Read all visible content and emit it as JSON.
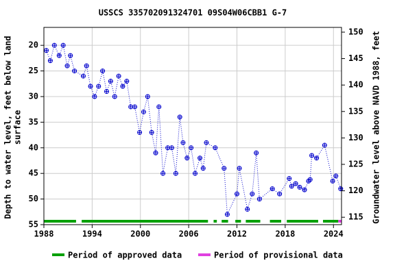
{
  "chart_data": {
    "type": "line",
    "title": "USSCS 335702091324701 09S04W06CBB1 G-7",
    "y_label": [
      "Depth to water level, feet below land",
      "surface"
    ],
    "y2_label": "Groundwater level above NAVD 1988, feet",
    "color": "#0000cc",
    "x": [
      1988.3,
      1988.8,
      1989.3,
      1989.9,
      1990.4,
      1990.9,
      1991.3,
      1991.8,
      1992.9,
      1993.3,
      1993.8,
      1994.3,
      1994.8,
      1995.3,
      1995.8,
      1996.3,
      1996.8,
      1997.3,
      1997.8,
      1998.3,
      1998.8,
      1999.3,
      1999.9,
      2000.4,
      2000.9,
      2001.4,
      2001.9,
      2002.3,
      2002.8,
      2003.4,
      2003.9,
      2004.4,
      2004.9,
      2005.3,
      2005.8,
      2006.3,
      2006.8,
      2007.4,
      2007.8,
      2008.2,
      2009.3,
      2010.4,
      2010.8,
      2012.0,
      2012.3,
      2013.3,
      2013.9,
      2014.4,
      2014.8,
      2016.4,
      2017.3,
      2018.5,
      2018.8,
      2019.3,
      2019.8,
      2020.4,
      2020.9,
      2021.1,
      2021.3,
      2021.9,
      2022.9,
      2023.9,
      2024.3,
      2024.9
    ],
    "values": [
      21,
      23,
      20,
      22,
      20,
      24,
      22,
      25,
      26,
      24,
      28,
      30,
      28,
      25,
      29,
      27,
      30,
      26,
      28,
      27,
      32,
      32,
      37,
      33,
      30,
      37,
      41,
      32,
      45,
      40,
      40,
      45,
      34,
      39,
      42,
      40,
      45,
      42,
      44,
      39,
      40,
      44,
      53,
      49,
      44,
      52,
      49,
      41,
      50,
      48,
      49,
      46,
      47.5,
      47,
      47.7,
      48.2,
      46.5,
      46.2,
      41.5,
      42,
      39.5,
      46.5,
      45.5,
      48
    ],
    "xlim": [
      1988,
      2025
    ],
    "xticks": [
      1988,
      1994,
      2000,
      2006,
      2012,
      2018,
      2024
    ],
    "ylim": [
      16.5,
      55
    ],
    "yticks": [
      20,
      25,
      30,
      35,
      40,
      45,
      50,
      55
    ],
    "y2lim": [
      113.6,
      150.9
    ],
    "y2ticks": [
      115,
      120,
      125,
      130,
      135,
      140,
      145,
      150
    ],
    "grid": true,
    "periods": [
      {
        "name": "Period of approved data",
        "color": "#00a000",
        "ranges": [
          [
            1988,
            1992.0
          ],
          [
            1992.7,
            2008.4
          ],
          [
            2009.1,
            2009.5
          ],
          [
            2010.1,
            2010.9
          ],
          [
            2011.8,
            2012.5
          ],
          [
            2013.1,
            2014.9
          ],
          [
            2016.1,
            2017.5
          ],
          [
            2018.2,
            2022.1
          ],
          [
            2022.7,
            2024.6
          ]
        ]
      },
      {
        "name": "Period of provisional data",
        "color": "#e040e0",
        "ranges": [
          [
            2024.6,
            2025
          ]
        ]
      }
    ]
  }
}
